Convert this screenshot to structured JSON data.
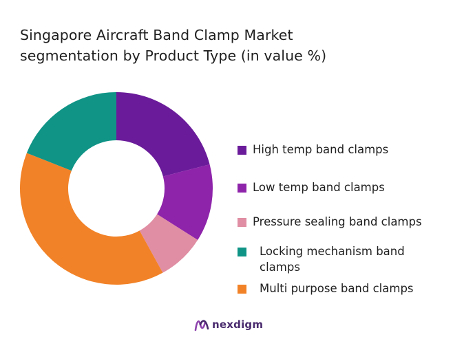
{
  "chart_data": {
    "type": "pie",
    "variant": "donut",
    "title": "Singapore Aircraft Band Clamp Market segmentation by Product Type (in value %)",
    "title_lines": [
      "Singapore Aircraft Band Clamp Market",
      "segmentation by Product Type (in value %)"
    ],
    "legend_position": "right",
    "slices": [
      {
        "label": "High temp band clamps",
        "value": 21,
        "color": "#6a1b9a"
      },
      {
        "label": "Low temp band clamps",
        "value": 13,
        "color": "#8e24aa"
      },
      {
        "label": "Pressure sealing band clamps",
        "value": 8,
        "color": "#e08ea3"
      },
      {
        "label": "Multi purpose band clamps",
        "value": 39,
        "color": "#f28227"
      },
      {
        "label": "Locking mechanism band clamps",
        "value": 19,
        "color": "#0f9486"
      }
    ],
    "legend_order": [
      0,
      1,
      2,
      4,
      3
    ]
  },
  "brand": {
    "name": "nexdigm",
    "icon": "nexdigm-logo-icon",
    "color": "#4a2b6e"
  }
}
